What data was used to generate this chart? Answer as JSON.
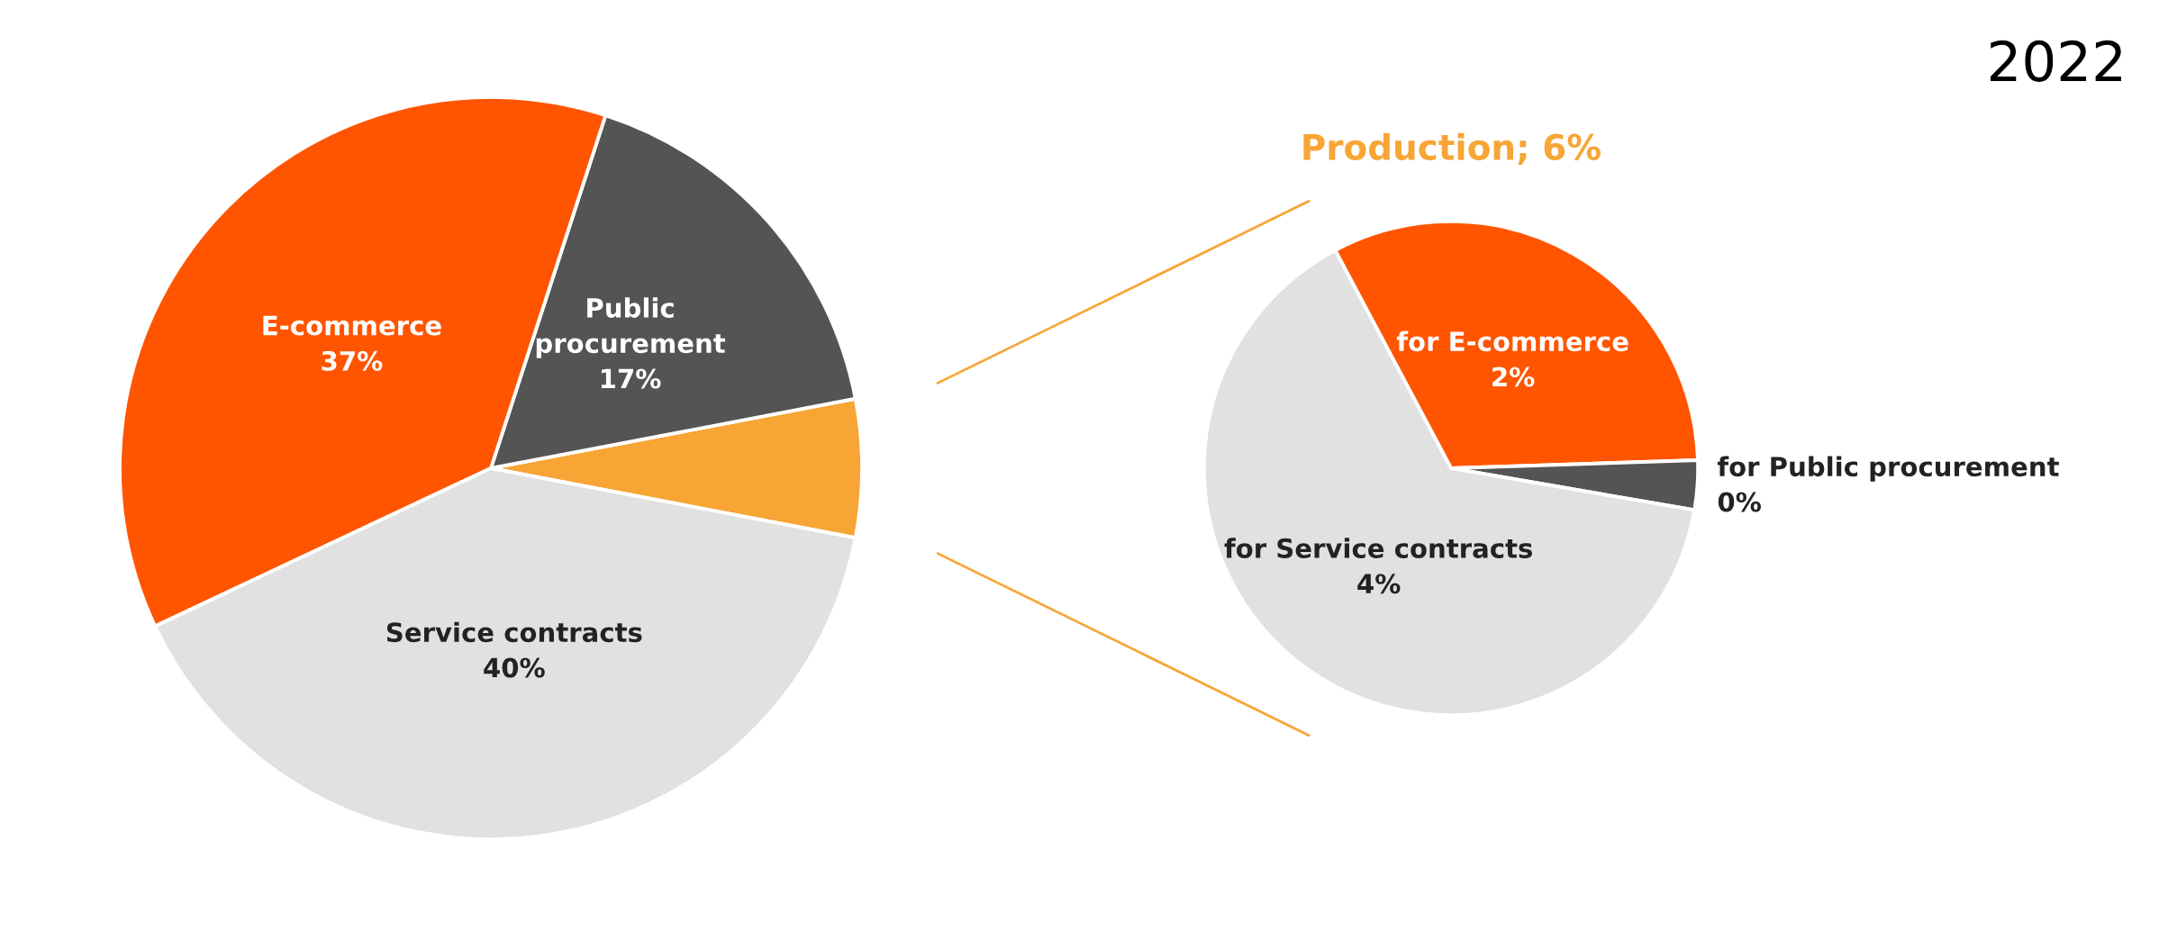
{
  "chart_data": [
    {
      "type": "pie",
      "categories": [
        null,
        "Public procurement",
        "E-commerce",
        "Service contracts"
      ],
      "values": [
        6,
        17,
        37,
        40
      ],
      "value_labels": [
        null,
        "17%",
        "37%",
        "40%"
      ],
      "colors": [
        "#f7a535",
        "#545454",
        "#ff5500",
        "#e1e1e1"
      ]
    },
    {
      "type": "pie",
      "title": "Production; 6%",
      "annotations": [
        "2022"
      ],
      "categories": [
        "for E-commerce",
        "for Public procurement",
        "for Service contracts"
      ],
      "values": [
        2,
        0.2,
        4
      ],
      "value_labels": [
        "2%",
        "0%",
        "4%"
      ],
      "colors": [
        "#ff5500",
        "#545454",
        "#e1e1e1"
      ]
    }
  ]
}
